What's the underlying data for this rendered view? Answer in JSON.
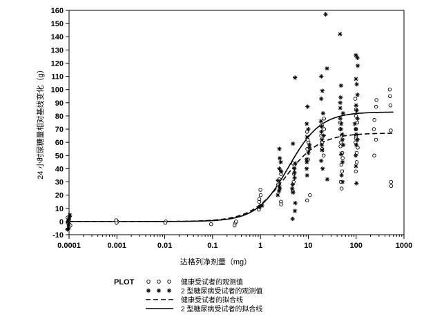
{
  "chart_data": {
    "type": "scatter",
    "xlabel": "达格列净剂量（mg）",
    "ylabel": "24 小时尿糖量相对基线变化（g）",
    "x_scale": "log",
    "xlim": [
      0.0001,
      1000
    ],
    "ylim": [
      -10,
      160
    ],
    "x_ticks": [
      "0.0001",
      "0.001",
      "0.01",
      "0.1",
      "1",
      "10",
      "100",
      "1000"
    ],
    "y_ticks": [
      "-10",
      "0",
      "10",
      "20",
      "30",
      "40",
      "50",
      "60",
      "70",
      "80",
      "90",
      "100",
      "110",
      "120",
      "130",
      "140",
      "150",
      "160"
    ],
    "grid": false,
    "legend_placement": "below",
    "legend_title": "PLOT",
    "series": [
      {
        "name": "健康受试者的观测值",
        "kind": "observed",
        "marker": "open-circle",
        "points": [
          [
            0.0001,
            -4
          ],
          [
            0.0001,
            -2
          ],
          [
            0.0001,
            -1
          ],
          [
            0.0001,
            0
          ],
          [
            0.0001,
            1
          ],
          [
            0.0001,
            2
          ],
          [
            0.0001,
            3
          ],
          [
            0.0001,
            -3
          ],
          [
            0.001,
            0
          ],
          [
            0.001,
            -1
          ],
          [
            0.001,
            1
          ],
          [
            0.01,
            0
          ],
          [
            0.01,
            -1
          ],
          [
            0.1,
            -2
          ],
          [
            0.3,
            -1
          ],
          [
            0.3,
            -3
          ],
          [
            0.3,
            0
          ],
          [
            1,
            15
          ],
          [
            1,
            20
          ],
          [
            1,
            24
          ],
          [
            1,
            17
          ],
          [
            1,
            9
          ],
          [
            2.5,
            15
          ],
          [
            2.5,
            13
          ],
          [
            2.5,
            28
          ],
          [
            2.5,
            32
          ],
          [
            2.5,
            36
          ],
          [
            5,
            23
          ],
          [
            5,
            30
          ],
          [
            5,
            36
          ],
          [
            5,
            42
          ],
          [
            5,
            44
          ],
          [
            10,
            16
          ],
          [
            10,
            20
          ],
          [
            10,
            47
          ],
          [
            10,
            55
          ],
          [
            10,
            60
          ],
          [
            10,
            62
          ],
          [
            10,
            68
          ],
          [
            20,
            50
          ],
          [
            20,
            55
          ],
          [
            20,
            60
          ],
          [
            20,
            65
          ],
          [
            20,
            70
          ],
          [
            20,
            73
          ],
          [
            20,
            78
          ],
          [
            50,
            25
          ],
          [
            50,
            30
          ],
          [
            50,
            38
          ],
          [
            50,
            43
          ],
          [
            50,
            48
          ],
          [
            50,
            52
          ],
          [
            50,
            57
          ],
          [
            50,
            60
          ],
          [
            50,
            65
          ],
          [
            50,
            70
          ],
          [
            50,
            75
          ],
          [
            100,
            38
          ],
          [
            100,
            45
          ],
          [
            100,
            52
          ],
          [
            100,
            56
          ],
          [
            100,
            60
          ],
          [
            100,
            63
          ],
          [
            100,
            65
          ],
          [
            100,
            70
          ],
          [
            100,
            75
          ],
          [
            100,
            80
          ],
          [
            100,
            85
          ],
          [
            100,
            93
          ],
          [
            250,
            50
          ],
          [
            250,
            62
          ],
          [
            250,
            70
          ],
          [
            250,
            77
          ],
          [
            250,
            87
          ],
          [
            250,
            92
          ],
          [
            500,
            27
          ],
          [
            500,
            30
          ],
          [
            500,
            69
          ],
          [
            500,
            88
          ],
          [
            500,
            95
          ],
          [
            500,
            100
          ]
        ]
      },
      {
        "name": "2 型糖尿病受试者的观测值",
        "kind": "observed",
        "marker": "asterisk",
        "points": [
          [
            0.0001,
            -6
          ],
          [
            0.0001,
            -5
          ],
          [
            0.0001,
            -2
          ],
          [
            0.0001,
            0
          ],
          [
            0.0001,
            2
          ],
          [
            0.0001,
            4
          ],
          [
            0.0001,
            5
          ],
          [
            1,
            11
          ],
          [
            1,
            12
          ],
          [
            2.5,
            20
          ],
          [
            2.5,
            23
          ],
          [
            2.5,
            25
          ],
          [
            2.5,
            27
          ],
          [
            2.5,
            31
          ],
          [
            2.5,
            38
          ],
          [
            2.5,
            40
          ],
          [
            2.5,
            45
          ],
          [
            2.5,
            48
          ],
          [
            2.5,
            55
          ],
          [
            5,
            2
          ],
          [
            5,
            8
          ],
          [
            5,
            14
          ],
          [
            5,
            22
          ],
          [
            5,
            25
          ],
          [
            5,
            28
          ],
          [
            5,
            33
          ],
          [
            5,
            37
          ],
          [
            5,
            40
          ],
          [
            5,
            44
          ],
          [
            5,
            59
          ],
          [
            5,
            109
          ],
          [
            10,
            35
          ],
          [
            10,
            40
          ],
          [
            10,
            45
          ],
          [
            10,
            47
          ],
          [
            10,
            52
          ],
          [
            10,
            56
          ],
          [
            10,
            58
          ],
          [
            10,
            64
          ],
          [
            10,
            70
          ],
          [
            10,
            74
          ],
          [
            10,
            87
          ],
          [
            20,
            40
          ],
          [
            20,
            46
          ],
          [
            20,
            54
          ],
          [
            20,
            58
          ],
          [
            20,
            62
          ],
          [
            20,
            65
          ],
          [
            20,
            68
          ],
          [
            20,
            72
          ],
          [
            20,
            76
          ],
          [
            20,
            82
          ],
          [
            20,
            93
          ],
          [
            20,
            99
          ],
          [
            20,
            110
          ],
          [
            25,
            32
          ],
          [
            25,
            116
          ],
          [
            25,
            157
          ],
          [
            50,
            30
          ],
          [
            50,
            35
          ],
          [
            50,
            45
          ],
          [
            50,
            51
          ],
          [
            50,
            58
          ],
          [
            50,
            62
          ],
          [
            50,
            66
          ],
          [
            50,
            70
          ],
          [
            50,
            74
          ],
          [
            50,
            78
          ],
          [
            50,
            82
          ],
          [
            50,
            86
          ],
          [
            50,
            90
          ],
          [
            50,
            94
          ],
          [
            50,
            103
          ],
          [
            50,
            142
          ],
          [
            100,
            29
          ],
          [
            100,
            42
          ],
          [
            100,
            50
          ],
          [
            100,
            58
          ],
          [
            100,
            62
          ],
          [
            100,
            66
          ],
          [
            100,
            70
          ],
          [
            100,
            74
          ],
          [
            100,
            78
          ],
          [
            100,
            84
          ],
          [
            100,
            88
          ],
          [
            100,
            96
          ],
          [
            100,
            104
          ],
          [
            100,
            108
          ],
          [
            100,
            118
          ],
          [
            100,
            124
          ],
          [
            100,
            126
          ]
        ]
      },
      {
        "name": "健康受试者的拟合线",
        "kind": "fit",
        "line_style": "dashed",
        "emax": 67,
        "ed50": 3.3,
        "hill": 1.2
      },
      {
        "name": "2 型糖尿病受试者的拟合线",
        "kind": "fit",
        "line_style": "solid",
        "emax": 83,
        "ed50": 3.9,
        "hill": 1.3
      }
    ]
  }
}
